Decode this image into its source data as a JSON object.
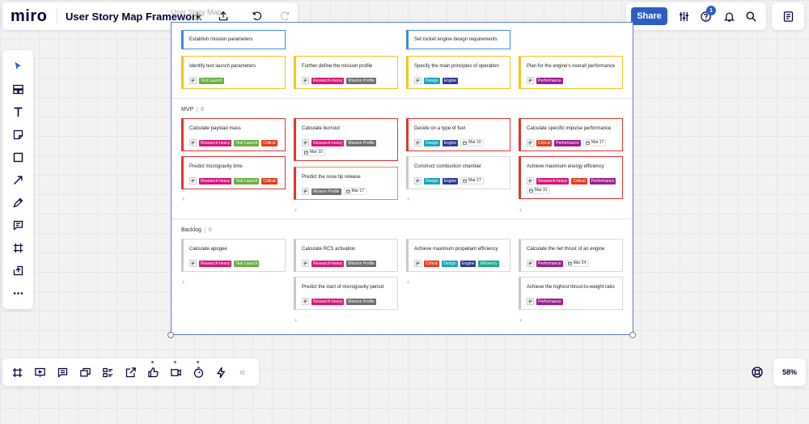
{
  "app": {
    "logo": "miro",
    "board_title": "User Story Map Framework",
    "share_label": "Share",
    "notifications_count": "1",
    "zoom": "58%",
    "collapse_label": "«"
  },
  "frame": {
    "label": "User Story Map..."
  },
  "colors": {
    "accent": "#2d5ec3",
    "blue_border": "#3d8fd8",
    "yellow_border": "#f5c518",
    "red_border": "#e2352d",
    "salmon_border": "#f08470",
    "gray_border": "#c8c8c8"
  },
  "tags": {
    "Research-heavy": "#d6157a",
    "Test Launch": "#6aaf3f",
    "Critical": "#e43c1e",
    "Mission Profile": "#6e6e6e",
    "Design": "#18a6b5",
    "Engine": "#2b3a9a",
    "Performance": "#9c1d8f",
    "Efficiency": "#17a98a"
  },
  "lanes": [
    {
      "name": "MVP",
      "count": "8"
    },
    {
      "name": "Backlog",
      "count": "6"
    }
  ],
  "cards": [
    {
      "title": "Establish mission parameters",
      "style": "blue",
      "tags": [],
      "date": ""
    },
    {
      "title": "Set rocket engine design requirements",
      "style": "blue",
      "tags": [],
      "date": ""
    },
    {
      "title": "Identify test launch parameters",
      "style": "yellow",
      "tags": [
        "Test Launch"
      ],
      "date": ""
    },
    {
      "title": "Further define the mission profile",
      "style": "yellow",
      "tags": [
        "Research-heavy",
        "Mission Profile"
      ],
      "date": ""
    },
    {
      "title": "Specify the main principles of operation",
      "style": "yellow",
      "tags": [
        "Design",
        "Engine"
      ],
      "date": ""
    },
    {
      "title": "Plan for the engine's overall performance",
      "style": "yellow",
      "tags": [
        "Performance"
      ],
      "date": ""
    },
    {
      "title": "Calculate payload mass",
      "style": "red",
      "tags": [
        "Research-heavy",
        "Test Launch",
        "Critical"
      ],
      "date": ""
    },
    {
      "title": "Calculate burnout",
      "style": "red",
      "tags": [
        "Research-heavy",
        "Mission Profile"
      ],
      "date": "Mar 10"
    },
    {
      "title": "Decide on a type of fuel",
      "style": "red",
      "tags": [
        "Design",
        "Engine"
      ],
      "date": "Mar 10"
    },
    {
      "title": "Calculate specific impulse performance",
      "style": "red",
      "tags": [
        "Critical",
        "Performance"
      ],
      "date": "Mar 17"
    },
    {
      "title": "Predict microgravity time",
      "style": "red",
      "tags": [
        "Research-heavy",
        "Test Launch",
        "Critical"
      ],
      "date": ""
    },
    {
      "title": "Predict the nose tip release",
      "style": "salmon",
      "tags": [
        "Mission Profile"
      ],
      "date": "Mar 17"
    },
    {
      "title": "Construct combustion chamber",
      "style": "gray",
      "tags": [
        "Design",
        "Engine"
      ],
      "date": "Mar 17"
    },
    {
      "title": "Achieve maximum energy efficiency",
      "style": "red",
      "tags": [
        "Research-heavy",
        "Critical",
        "Performance"
      ],
      "date": "Mar 31"
    },
    {
      "title": "Calculate apogee",
      "style": "gray",
      "tags": [
        "Research-heavy",
        "Test Launch"
      ],
      "date": ""
    },
    {
      "title": "Calculate RCS activation",
      "style": "gray",
      "tags": [
        "Research-heavy",
        "Mission Profile"
      ],
      "date": ""
    },
    {
      "title": "Achieve maximum propellant efficiency",
      "style": "gray",
      "tags": [
        "Critical",
        "Design",
        "Engine",
        "Efficiency"
      ],
      "date": ""
    },
    {
      "title": "Calculate the net thrust of an engine",
      "style": "gray",
      "tags": [
        "Performance"
      ],
      "date": "Mar 24"
    },
    {
      "title": "Predict the start of microgravity period",
      "style": "gray",
      "tags": [
        "Research-heavy",
        "Mission Profile"
      ],
      "date": ""
    },
    {
      "title": "Achieve the highest thrust-to-weight ratio",
      "style": "gray",
      "tags": [
        "Performance"
      ],
      "date": ""
    }
  ]
}
